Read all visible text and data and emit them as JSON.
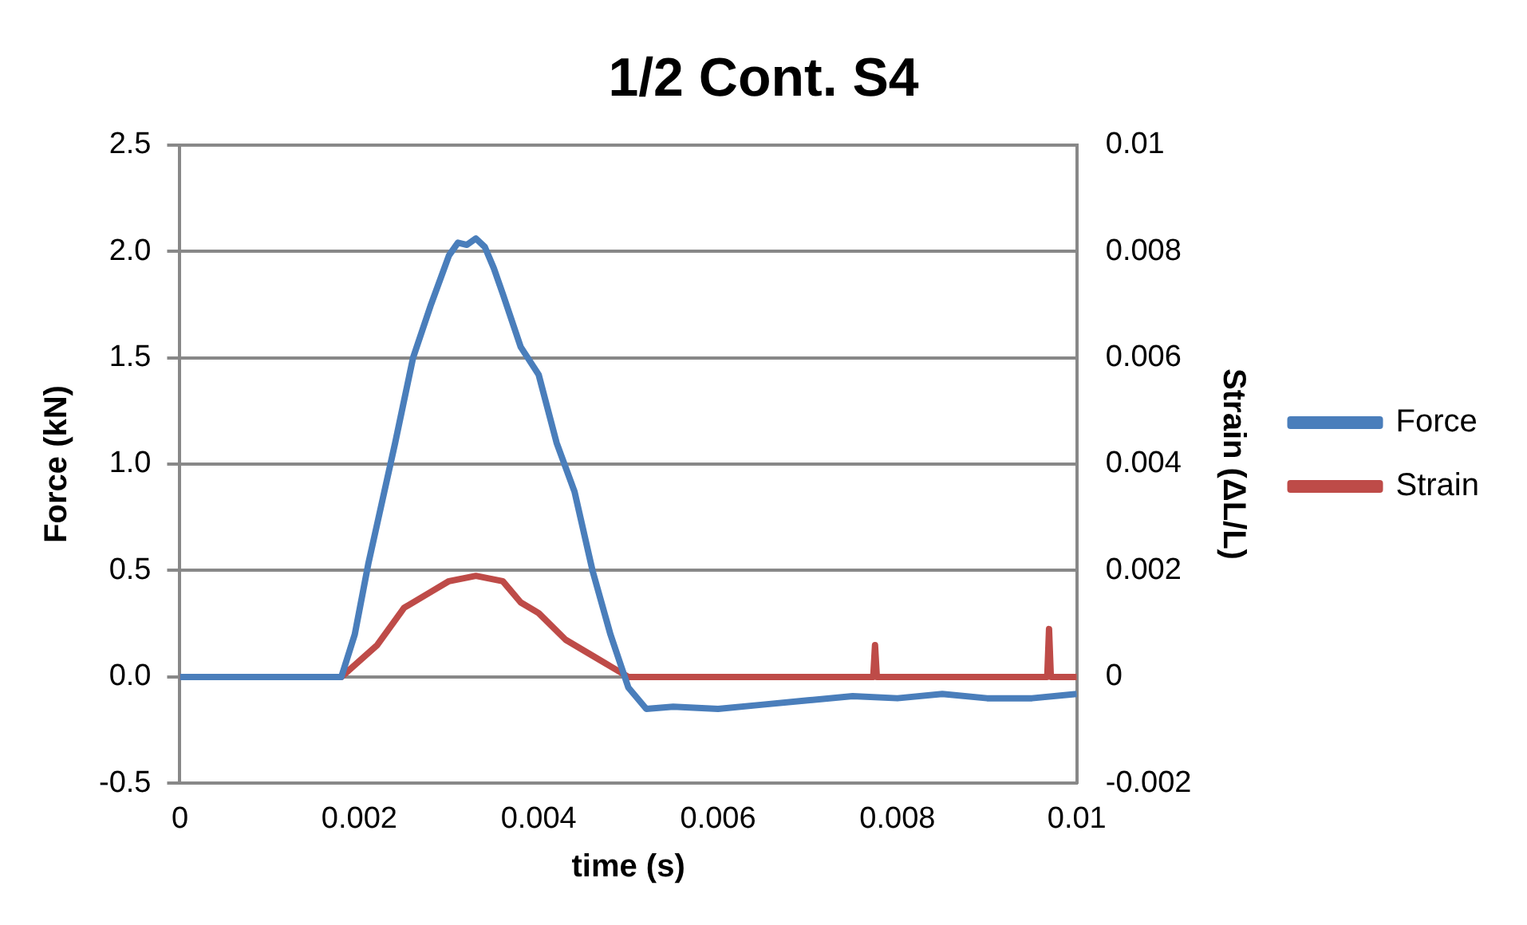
{
  "chart_data": {
    "type": "line",
    "title": "1/2 Cont. S4",
    "xlabel": "time (s)",
    "ylabel": "Force (kN)",
    "y2label": "Strain (ΔL/L)",
    "xlim": [
      0,
      0.01
    ],
    "xticks": [
      0,
      0.002,
      0.004,
      0.006,
      0.008,
      0.01
    ],
    "ylim": [
      -0.5,
      2.5
    ],
    "yticks": [
      {
        "value": -0.5,
        "label": "-0.5"
      },
      {
        "value": 0,
        "label": "0.0"
      },
      {
        "value": 0.5,
        "label": "0.5"
      },
      {
        "value": 1,
        "label": "1.0"
      },
      {
        "value": 1.5,
        "label": "1.5"
      },
      {
        "value": 2,
        "label": "2.0"
      },
      {
        "value": 2.5,
        "label": "2.5"
      }
    ],
    "y2lim": [
      -0.002,
      0.01
    ],
    "y2ticks": [
      -0.002,
      0,
      0.002,
      0.004,
      0.006,
      0.008,
      0.01
    ],
    "grid": "y",
    "legend": "right",
    "marker": "none",
    "line_style": "solid",
    "series": [
      {
        "name": "Force",
        "color": "#4a7ebb",
        "x": [
          0,
          0.001,
          0.0018,
          0.00195,
          0.0021,
          0.0022,
          0.0024,
          0.0026,
          0.0028,
          0.003,
          0.0031,
          0.0032,
          0.0033,
          0.0034,
          0.0035,
          0.0036,
          0.0038,
          0.004,
          0.0042,
          0.0044,
          0.0046,
          0.0048,
          0.005,
          0.0052,
          0.0055,
          0.006,
          0.0065,
          0.007,
          0.0075,
          0.008,
          0.0085,
          0.009,
          0.0095,
          0.01
        ],
        "values": [
          0,
          0,
          0,
          0.2,
          0.53,
          0.72,
          1.1,
          1.5,
          1.75,
          1.98,
          2.04,
          2.03,
          2.06,
          2.02,
          1.92,
          1.8,
          1.55,
          1.42,
          1.1,
          0.87,
          0.5,
          0.2,
          -0.05,
          -0.15,
          -0.14,
          -0.15,
          -0.13,
          -0.11,
          -0.09,
          -0.1,
          -0.08,
          -0.1,
          -0.1,
          -0.08
        ]
      },
      {
        "name": "Strain",
        "color": "#be4b48",
        "axis": "y2",
        "x": [
          0,
          0.001,
          0.0018,
          0.002,
          0.0022,
          0.0025,
          0.0028,
          0.003,
          0.0033,
          0.0036,
          0.0038,
          0.004,
          0.0043,
          0.0046,
          0.0048,
          0.005,
          0.0052,
          0.006,
          0.007,
          0.00773,
          0.00775,
          0.00777,
          0.008,
          0.009,
          0.00967,
          0.00969,
          0.00971,
          0.01
        ],
        "values": [
          0,
          0,
          0,
          0.0003,
          0.0006,
          0.0013,
          0.0016,
          0.0018,
          0.0019,
          0.0018,
          0.0014,
          0.0012,
          0.0007,
          0.0004,
          0.0002,
          0,
          0,
          0,
          0,
          0,
          0.0006,
          0,
          0,
          0,
          0,
          0.0009,
          0,
          0
        ]
      }
    ]
  }
}
